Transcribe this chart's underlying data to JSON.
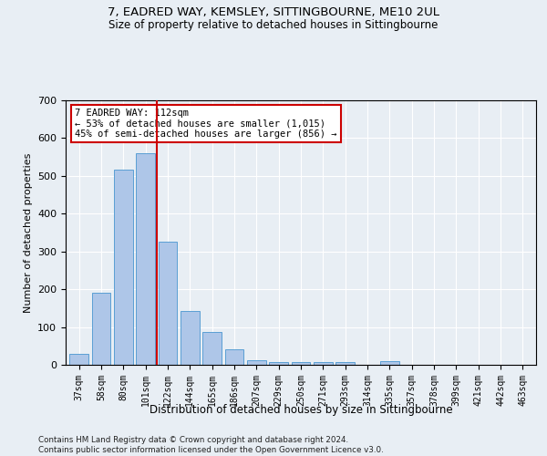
{
  "title1": "7, EADRED WAY, KEMSLEY, SITTINGBOURNE, ME10 2UL",
  "title2": "Size of property relative to detached houses in Sittingbourne",
  "xlabel": "Distribution of detached houses by size in Sittingbourne",
  "ylabel": "Number of detached properties",
  "categories": [
    "37sqm",
    "58sqm",
    "80sqm",
    "101sqm",
    "122sqm",
    "144sqm",
    "165sqm",
    "186sqm",
    "207sqm",
    "229sqm",
    "250sqm",
    "271sqm",
    "293sqm",
    "314sqm",
    "335sqm",
    "357sqm",
    "378sqm",
    "399sqm",
    "421sqm",
    "442sqm",
    "463sqm"
  ],
  "values": [
    30,
    190,
    517,
    560,
    325,
    142,
    88,
    40,
    13,
    8,
    8,
    8,
    8,
    0,
    10,
    0,
    0,
    0,
    0,
    0,
    0
  ],
  "bar_color": "#aec6e8",
  "bar_edge_color": "#5a9fd4",
  "vline_color": "#cc0000",
  "vline_pos": 3.52,
  "annotation_text": "7 EADRED WAY: 112sqm\n← 53% of detached houses are smaller (1,015)\n45% of semi-detached houses are larger (856) →",
  "annotation_box_color": "#ffffff",
  "annotation_box_edge": "#cc0000",
  "footer": "Contains HM Land Registry data © Crown copyright and database right 2024.\nContains public sector information licensed under the Open Government Licence v3.0.",
  "ylim": [
    0,
    700
  ],
  "bg_color": "#e8eef4",
  "grid_color": "#ffffff"
}
